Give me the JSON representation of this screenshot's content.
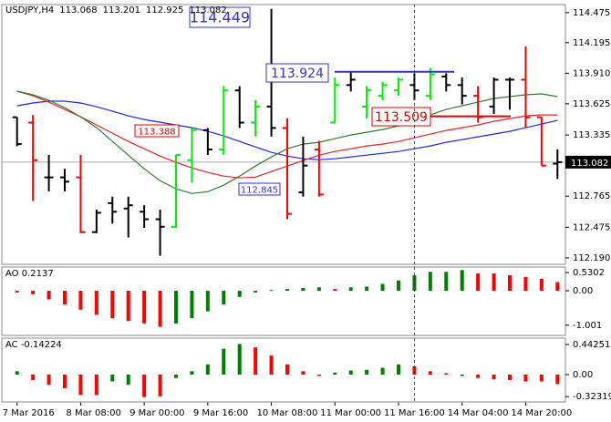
{
  "chart_data": [
    {
      "type": "ohlc",
      "title": "USDJPY,H4",
      "header_values": [
        113.068,
        113.201,
        112.925,
        113.082
      ],
      "categories": [
        "7 Mar 2016",
        null,
        null,
        null,
        "8 Mar 08:00",
        null,
        null,
        null,
        "9 Mar 00:00",
        null,
        null,
        null,
        "9 Mar 16:00",
        null,
        null,
        null,
        "10 Mar 08:00",
        null,
        null,
        null,
        "11 Mar 00:00",
        null,
        null,
        null,
        "11 Mar 16:00",
        null,
        null,
        null,
        "14 Mar 04:00",
        null,
        null,
        null,
        "14 Mar 20:00",
        null,
        null
      ],
      "open": [
        113.5,
        113.45,
        112.94,
        112.94,
        112.94,
        112.43,
        112.7,
        112.65,
        112.62,
        112.55,
        112.48,
        113.1,
        113.38,
        113.2,
        113.75,
        113.45,
        113.6,
        113.4,
        112.8,
        113.2,
        113.45,
        113.8,
        113.6,
        113.7,
        113.75,
        113.8,
        113.7,
        113.88,
        113.8,
        113.7,
        113.6,
        113.85,
        113.85,
        113.5,
        113.068
      ],
      "high": [
        113.5,
        113.52,
        113.15,
        113.02,
        113.15,
        112.64,
        112.76,
        112.76,
        112.68,
        112.64,
        113.15,
        113.4,
        113.4,
        113.79,
        113.79,
        113.66,
        114.51,
        113.49,
        113.32,
        113.28,
        113.87,
        113.93,
        113.79,
        113.83,
        113.87,
        113.91,
        113.96,
        113.91,
        113.87,
        113.79,
        113.87,
        113.87,
        114.16,
        113.5,
        113.201
      ],
      "low": [
        113.23,
        112.72,
        112.81,
        112.81,
        112.42,
        112.42,
        112.51,
        112.38,
        112.47,
        112.21,
        112.47,
        112.89,
        113.15,
        113.15,
        113.4,
        113.32,
        113.32,
        112.55,
        112.76,
        112.76,
        113.45,
        113.74,
        113.49,
        113.66,
        113.7,
        113.66,
        113.66,
        113.74,
        113.62,
        113.45,
        113.53,
        113.57,
        113.4,
        113.05,
        112.925
      ],
      "close": [
        113.25,
        113.1,
        112.94,
        112.9,
        112.43,
        112.61,
        112.62,
        112.68,
        112.55,
        112.48,
        113.15,
        113.38,
        113.2,
        113.75,
        113.45,
        113.6,
        113.4,
        112.6,
        113.05,
        112.78,
        113.8,
        113.85,
        113.75,
        113.8,
        113.85,
        113.75,
        113.9,
        113.8,
        113.7,
        113.5,
        113.85,
        113.85,
        113.5,
        113.05,
        113.082
      ],
      "colors": [
        "#000000",
        "#ff0000",
        "#000000",
        "#000000",
        "#ff0000",
        "#000000",
        "#000000",
        "#000000",
        "#000000",
        "#000000",
        "#00ee00",
        "#00ee00",
        "#000000",
        "#00ee00",
        "#000000",
        "#00ee00",
        "#000000",
        "#ff0000",
        "#000000",
        "#ff0000",
        "#00ee00",
        "#000000",
        "#00ee00",
        "#00ee00",
        "#00ee00",
        "#000000",
        "#00ee00",
        "#000000",
        "#000000",
        "#ff0000",
        "#000000",
        "#000000",
        "#ff0000",
        "#ff0000",
        "#000000"
      ],
      "lines": [
        {
          "color": "#2222ff",
          "values": [
            113.607,
            113.633,
            113.65,
            113.65,
            113.633,
            113.598,
            113.556,
            113.513,
            113.479,
            113.454,
            113.428,
            113.403,
            113.369,
            113.326,
            113.275,
            113.224,
            113.173,
            113.139,
            113.113,
            113.105,
            113.113,
            113.13,
            113.147,
            113.164,
            113.181,
            113.207,
            113.233,
            113.267,
            113.292,
            113.318,
            113.343,
            113.369,
            113.403,
            113.437,
            113.471
          ]
        },
        {
          "color": "#ee2222",
          "values": [
            113.743,
            113.701,
            113.641,
            113.573,
            113.505,
            113.428,
            113.352,
            113.275,
            113.207,
            113.139,
            113.079,
            113.028,
            112.986,
            112.952,
            112.935,
            112.943,
            112.994,
            113.045,
            113.096,
            113.147,
            113.181,
            113.207,
            113.233,
            113.25,
            113.275,
            113.309,
            113.343,
            113.377,
            113.403,
            113.428,
            113.462,
            113.488,
            113.513,
            113.522,
            113.522
          ]
        },
        {
          "color": "#2e7d32",
          "values": [
            113.743,
            113.709,
            113.658,
            113.59,
            113.505,
            113.403,
            113.275,
            113.147,
            113.02,
            112.909,
            112.833,
            112.79,
            112.807,
            112.867,
            112.952,
            113.045,
            113.13,
            113.207,
            113.25,
            113.267,
            113.301,
            113.335,
            113.36,
            113.386,
            113.42,
            113.471,
            113.522,
            113.573,
            113.607,
            113.641,
            113.675,
            113.692,
            113.709,
            113.718,
            113.692
          ]
        }
      ],
      "annotations": [
        {
          "value": 114.449,
          "color": "#3333cc"
        },
        {
          "value": 113.924,
          "color": "#3333cc"
        },
        {
          "value": 113.509,
          "color": "#e00000"
        },
        {
          "value": 113.388,
          "color": "#e00000"
        },
        {
          "value": 112.845,
          "color": "#3333cc"
        }
      ],
      "ylim": [
        112.13,
        114.55
      ],
      "yticks": [
        114.475,
        114.195,
        {
          "value": 113.91,
          "label": "113.910"
        },
        113.625,
        113.335,
        112.765,
        112.475,
        {
          "value": 112.19,
          "label": "112.190"
        }
      ]
    },
    {
      "type": "bar",
      "title": "AO 0.2137",
      "values": [
        -0.05,
        -0.1,
        -0.25,
        -0.4,
        -0.55,
        -0.7,
        -0.8,
        -0.88,
        -0.95,
        -1.05,
        -0.95,
        -0.8,
        -0.6,
        -0.4,
        -0.18,
        -0.05,
        0.02,
        0.05,
        0.08,
        0.1,
        0.05,
        0.1,
        0.12,
        0.2,
        0.3,
        0.45,
        0.55,
        0.55,
        0.6,
        0.5,
        0.5,
        0.45,
        0.4,
        0.35,
        0.25
      ],
      "colors": [
        "#ff0000",
        "#ff0000",
        "#ff0000",
        "#ff0000",
        "#ff0000",
        "#ff0000",
        "#ff0000",
        "#ff0000",
        "#ff0000",
        "#ff0000",
        "#008000",
        "#008000",
        "#008000",
        "#008000",
        "#008000",
        "#008000",
        "#008000",
        "#008000",
        "#008000",
        "#008000",
        "#ff0000",
        "#008000",
        "#008000",
        "#008000",
        "#008000",
        "#008000",
        "#008000",
        "#008000",
        "#008000",
        "#ff0000",
        "#ff0000",
        "#ff0000",
        "#ff0000",
        "#ff0000",
        "#ff0000"
      ],
      "ylim": [
        -1.299,
        0.689
      ],
      "yticks": [
        0.5302,
        {
          "value": 0,
          "label": "0.00"
        },
        -1.001
      ]
    },
    {
      "type": "bar",
      "title": "AC -0.14224",
      "values": [
        0.05,
        -0.08,
        -0.15,
        -0.2,
        -0.3,
        -0.3,
        -0.1,
        -0.15,
        -0.33,
        -0.32,
        -0.05,
        0.05,
        0.15,
        0.38,
        0.45,
        0.4,
        0.28,
        0.15,
        0.05,
        -0.02,
        0.03,
        0.06,
        0.07,
        0.1,
        0.15,
        0.12,
        0.05,
        0.02,
        -0.02,
        -0.05,
        -0.07,
        -0.08,
        -0.1,
        -0.1,
        -0.14
      ],
      "colors": [
        "#008000",
        "#ff0000",
        "#ff0000",
        "#ff0000",
        "#ff0000",
        "#ff0000",
        "#008000",
        "#008000",
        "#ff0000",
        "#ff0000",
        "#008000",
        "#008000",
        "#008000",
        "#008000",
        "#008000",
        "#ff0000",
        "#ff0000",
        "#ff0000",
        "#ff0000",
        "#ff0000",
        "#008000",
        "#008000",
        "#008000",
        "#008000",
        "#008000",
        "#ff0000",
        "#ff0000",
        "#ff0000",
        "#008000",
        "#ff0000",
        "#ff0000",
        "#ff0000",
        "#ff0000",
        "#ff0000",
        "#ff0000"
      ],
      "ylim": [
        -0.402,
        0.536
      ],
      "yticks": [
        0.44251,
        {
          "value": 0,
          "label": "0.00"
        },
        -0.32319
      ]
    }
  ]
}
